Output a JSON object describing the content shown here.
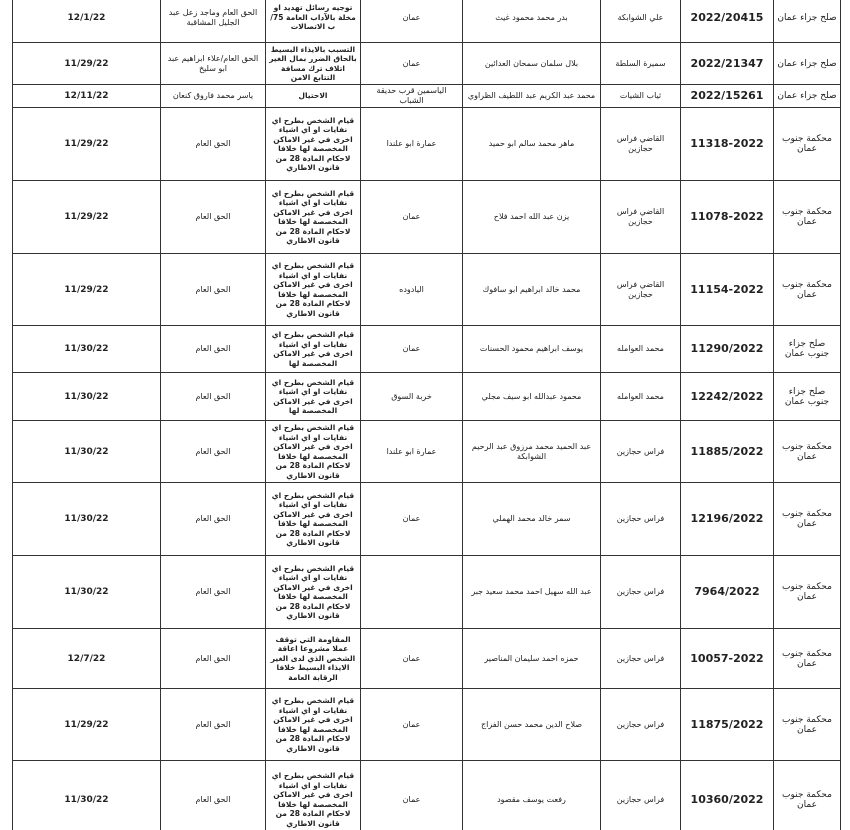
{
  "table": {
    "rows": [
      [
        "صلح جزاء عمان",
        "2022/20415",
        "علي الشوابكة",
        "بدر محمد محمود غيث",
        "عمان",
        "توجيه رسائل تهديد او مخلة بالآداب العامة 75/ب الاتصالات",
        "الحق العام وماجد زعل عبد الجليل المشاقبة",
        "12/1/22"
      ],
      [
        "صلح جزاء عمان",
        "2022/21347",
        "سميرة السلطة",
        "بلال سلمان سمحان العدائين",
        "عمان",
        "التسبب بالايذاء البسيط بالحاق الضرر بمال الغير اتلاف ترك مسافة التتابع الامن",
        "الحق العام/علاء ابراهيم عبد ابو سليخ",
        "11/29/22"
      ],
      [
        "صلح جزاء عمان",
        "2022/15261",
        "ثياب الشيات",
        "محمد عبد الكريم عبد اللطيف الظراوي",
        "الياسمين قرب حديقة الشباب",
        "الاحتيال",
        "ياسر محمد فاروق كنعان",
        "12/11/22"
      ],
      [
        "محكمة جنوب عمان",
        "11318-2022",
        "القاضي فراس حجازين",
        "ماهر محمد سالم ابو حميد",
        "عمارة ابو علندا",
        "قيام الشخص بطرح اي نفايات او اي اشياء اخرى في غير الاماكن المخصصة لها خلافا لاحكام المادة 28 من قانون الاطاري",
        "الحق العام",
        "11/29/22"
      ],
      [
        "محكمة جنوب عمان",
        "11078-2022",
        "القاضي فراس حجازين",
        "يزن عبد الله احمد فلاح",
        "عمان",
        "قيام الشخص بطرح اي نفايات او اي اشياء اخرى في غير الاماكن المخصصة لها خلافا لاحكام المادة 28 من قانون الاطاري",
        "الحق العام",
        "11/29/22"
      ],
      [
        "محكمة جنوب عمان",
        "11154-2022",
        "القاضي فراس حجازين",
        "محمد خالد ابراهيم ابو سافوك",
        "اليادوده",
        "قيام الشخص بطرح اي نفايات او اي اشياء اخرى في غير الاماكن المخصصة لها خلافا لاحكام المادة 28 من قانون الاطاري",
        "الحق العام",
        "11/29/22"
      ],
      [
        "صلح جزاء جنوب عمان",
        "11290/2022",
        "محمد العوامله",
        "يوسف ابراهيم محمود الحسنات",
        "عمان",
        "قيام الشخص بطرح اي نفايات او اي اشياء اخرى في غير الاماكن المخصصة لها",
        "الحق العام",
        "11/30/22"
      ],
      [
        "صلح جزاء جنوب عمان",
        "12242/2022",
        "محمد العوامله",
        "محمود عبدالله ابو سيف مجلي",
        "خربة السوق",
        "قيام الشخص بطرح اي نفايات او اي اشياء اخرى في غير الاماكن المخصصة لها",
        "الحق العام",
        "11/30/22"
      ],
      [
        "محكمة جنوب عمان",
        "11885/2022",
        "فراس حجازين",
        "عبد الحميد محمد مرزوق عبد الرحيم الشوابكة",
        "عمارة ابو علندا",
        "قيام الشخص بطرح اي نفايات او اي اشياء اخرى في غير الاماكن المخصصة لها خلافا لاحكام المادة 28 من قانون الاطاري",
        "الحق العام",
        "11/30/22"
      ],
      [
        "محكمة جنوب عمان",
        "12196/2022",
        "فراس حجازين",
        "سمر خالد محمد الهملي",
        "عمان",
        "قيام الشخص بطرح اي نفايات او اي اشياء اخرى في غير الاماكن المخصصة لها خلافا لاحكام المادة 28 من قانون الاطاري",
        "الحق العام",
        "11/30/22"
      ],
      [
        "محكمة جنوب عمان",
        "7964/2022",
        "فراس حجازين",
        "عبد الله سهيل احمد محمد سعيد جبر",
        null,
        "قيام الشخص بطرح اي نفايات او اي اشياء اخرى في غير الاماكن المخصصة لها خلافا لاحكام المادة 28 من قانون الاطاري",
        "الحق العام",
        "11/30/22"
      ],
      [
        "محكمة جنوب عمان",
        "10057-2022",
        "فراس حجازين",
        "حمزه احمد سليمان المناصير",
        "عمان",
        "المقاومة التي توقف عملا مشروعا اعاقة الشخص الذي لدى الغير الايذاء البسيط خلافا الرقابة العامة",
        "الحق العام",
        "12/7/22"
      ],
      [
        "محكمة جنوب عمان",
        "11875/2022",
        "فراس حجازين",
        "صلاح الدين محمد حسن الفراج",
        "عمان",
        "قيام الشخص بطرح اي نفايات او اي اشياء اخرى في غير الاماكن المخصصة لها خلافا لاحكام المادة 28 من قانون الاطاري",
        "الحق العام",
        "11/29/22"
      ],
      [
        "محكمة جنوب عمان",
        "10360/2022",
        "فراس حجازين",
        "رفعت يوسف مقصود",
        "عمان",
        "قيام الشخص بطرح اي نفايات او اي اشياء اخرى في غير الاماكن المخصصة لها خلافا لاحكام المادة 28 من قانون الاطاري",
        "الحق العام",
        "11/30/22"
      ]
    ]
  }
}
